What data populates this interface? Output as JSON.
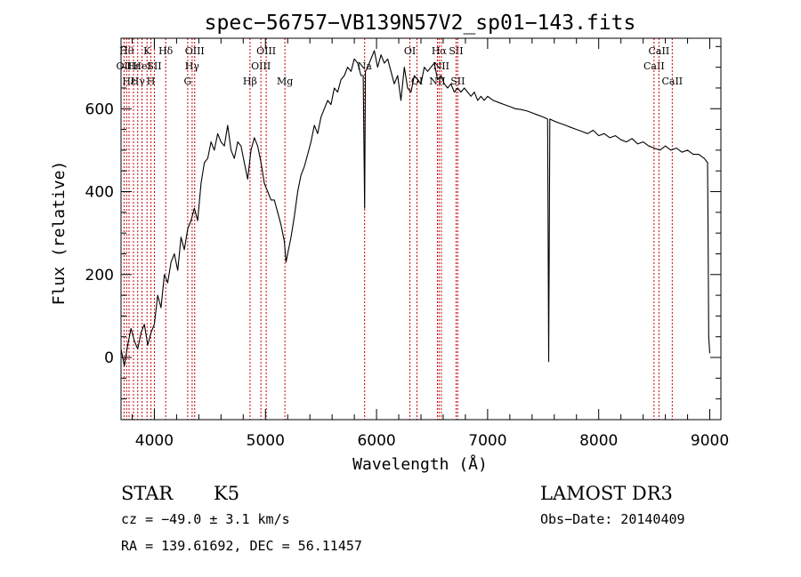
{
  "chart_data": {
    "type": "line",
    "title": "spec−56757−VB139N57V2_sp01−143.fits",
    "xlabel": "Wavelength (Å)",
    "ylabel": "Flux (relative)",
    "xlim": [
      3700,
      9100
    ],
    "ylim": [
      -150,
      770
    ],
    "x_ticks": [
      4000,
      5000,
      6000,
      7000,
      8000,
      9000
    ],
    "x_tick_labels": [
      "4000",
      "5000",
      "6000",
      "7000",
      "8000",
      "9000"
    ],
    "y_ticks": [
      0,
      200,
      400,
      600
    ],
    "y_tick_labels": [
      "0",
      "200",
      "400",
      "600"
    ],
    "series": [
      {
        "name": "spectrum",
        "x": [
          3700,
          3730,
          3760,
          3790,
          3820,
          3850,
          3880,
          3910,
          3940,
          3970,
          4000,
          4030,
          4060,
          4090,
          4120,
          4150,
          4180,
          4210,
          4240,
          4270,
          4300,
          4330,
          4360,
          4390,
          4420,
          4450,
          4480,
          4510,
          4540,
          4570,
          4600,
          4630,
          4660,
          4690,
          4720,
          4750,
          4780,
          4810,
          4840,
          4870,
          4900,
          4930,
          4960,
          4990,
          5020,
          5050,
          5080,
          5110,
          5140,
          5170,
          5185,
          5200,
          5230,
          5260,
          5290,
          5320,
          5350,
          5380,
          5410,
          5440,
          5470,
          5500,
          5530,
          5560,
          5590,
          5620,
          5650,
          5680,
          5710,
          5740,
          5770,
          5800,
          5830,
          5860,
          5880,
          5893,
          5900,
          5920,
          5950,
          5980,
          6010,
          6040,
          6070,
          6100,
          6130,
          6160,
          6190,
          6220,
          6250,
          6280,
          6310,
          6340,
          6370,
          6400,
          6430,
          6460,
          6490,
          6520,
          6550,
          6580,
          6610,
          6640,
          6670,
          6700,
          6730,
          6760,
          6790,
          6820,
          6850,
          6880,
          6910,
          6940,
          6970,
          7000,
          7050,
          7100,
          7150,
          7200,
          7250,
          7300,
          7350,
          7400,
          7450,
          7500,
          7540,
          7550,
          7560,
          7600,
          7650,
          7700,
          7750,
          7800,
          7850,
          7900,
          7950,
          8000,
          8050,
          8100,
          8150,
          8200,
          8250,
          8300,
          8350,
          8400,
          8450,
          8500,
          8550,
          8600,
          8650,
          8700,
          8750,
          8800,
          8850,
          8900,
          8950,
          8980,
          8985,
          8990,
          9000
        ],
        "values": [
          20,
          -20,
          30,
          70,
          40,
          20,
          60,
          80,
          30,
          60,
          80,
          150,
          120,
          200,
          180,
          230,
          250,
          210,
          290,
          260,
          310,
          330,
          360,
          330,
          420,
          470,
          480,
          520,
          500,
          540,
          520,
          510,
          560,
          500,
          480,
          520,
          510,
          470,
          430,
          500,
          530,
          510,
          470,
          420,
          400,
          380,
          380,
          350,
          320,
          280,
          230,
          250,
          290,
          340,
          400,
          440,
          460,
          490,
          520,
          560,
          540,
          580,
          600,
          620,
          610,
          650,
          640,
          670,
          680,
          700,
          690,
          720,
          710,
          680,
          680,
          360,
          690,
          700,
          720,
          740,
          700,
          730,
          710,
          720,
          690,
          660,
          680,
          620,
          700,
          650,
          640,
          680,
          670,
          660,
          700,
          690,
          700,
          710,
          670,
          680,
          660,
          650,
          660,
          640,
          650,
          640,
          650,
          640,
          630,
          640,
          620,
          630,
          620,
          630,
          620,
          615,
          610,
          605,
          600,
          598,
          595,
          590,
          585,
          580,
          575,
          -10,
          575,
          570,
          565,
          560,
          555,
          550,
          545,
          540,
          548,
          535,
          540,
          530,
          535,
          525,
          520,
          528,
          515,
          520,
          510,
          505,
          500,
          510,
          500,
          505,
          495,
          500,
          490,
          490,
          480,
          470,
          300,
          50,
          10
        ]
      }
    ],
    "spectral_lines": [
      {
        "wavelength": 3727,
        "label": "OII",
        "row": 2
      },
      {
        "wavelength": 3750,
        "label": "Hθ",
        "row": 1
      },
      {
        "wavelength": 3772,
        "label": "Hε",
        "row": 3
      },
      {
        "wavelength": 3812,
        "label": "Hε",
        "row": 2
      },
      {
        "wavelength": 3850,
        "label": "Hγ",
        "row": 3
      },
      {
        "wavelength": 3889,
        "label": "HeI",
        "row": 2
      },
      {
        "wavelength": 3934,
        "label": "K",
        "row": 1
      },
      {
        "wavelength": 3969,
        "label": "H",
        "row": 3
      },
      {
        "wavelength": 4000,
        "label": "SII",
        "row": 2
      },
      {
        "wavelength": 4102,
        "label": "Hδ",
        "row": 1
      },
      {
        "wavelength": 4300,
        "label": "G",
        "row": 3
      },
      {
        "wavelength": 4340,
        "label": "Hγ",
        "row": 2
      },
      {
        "wavelength": 4363,
        "label": "OIII",
        "row": 1
      },
      {
        "wavelength": 4861,
        "label": "Hβ",
        "row": 3
      },
      {
        "wavelength": 4959,
        "label": "OIII",
        "row": 2
      },
      {
        "wavelength": 5007,
        "label": "OIII",
        "row": 1
      },
      {
        "wavelength": 5175,
        "label": "Mg",
        "row": 3
      },
      {
        "wavelength": 5893,
        "label": "Na",
        "row": 2
      },
      {
        "wavelength": 6300,
        "label": "OI",
        "row": 1
      },
      {
        "wavelength": 6364,
        "label": "OI",
        "row": 3
      },
      {
        "wavelength": 6548,
        "label": "NII",
        "row": 3
      },
      {
        "wavelength": 6563,
        "label": "Hα",
        "row": 1
      },
      {
        "wavelength": 6583,
        "label": "NII",
        "row": 2
      },
      {
        "wavelength": 6716,
        "label": "SII",
        "row": 1
      },
      {
        "wavelength": 6731,
        "label": "SII",
        "row": 3
      },
      {
        "wavelength": 8498,
        "label": "CaII",
        "row": 2
      },
      {
        "wavelength": 8542,
        "label": "CaII",
        "row": 1
      },
      {
        "wavelength": 8662,
        "label": "CaII",
        "row": 3
      }
    ],
    "grid": false,
    "line_color": "#000000",
    "marker_color": "#cc0000"
  },
  "info": {
    "class": "STAR",
    "subclass": "K5",
    "survey": "LAMOST DR3",
    "cz": "cz = −49.0 ± 3.1 km/s",
    "obs_date": "Obs−Date: 20140409",
    "coords": "RA = 139.61692, DEC =  56.11457"
  }
}
